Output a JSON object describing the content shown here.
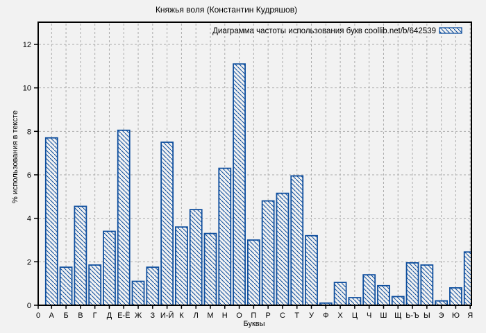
{
  "chart_data": {
    "type": "bar",
    "title": "Княжья воля (Константин Кудряшов)",
    "legend_label": "Диаграмма частоты использования букв coollib.net/b/642539",
    "legend_position": "top-right-inside",
    "xlabel": "Буквы",
    "ylabel": "% использования в тексте",
    "x_origin_label": "0",
    "categories": [
      "А",
      "Б",
      "В",
      "Г",
      "Д",
      "Е-Ё",
      "Ж",
      "З",
      "И-Й",
      "К",
      "Л",
      "М",
      "Н",
      "О",
      "П",
      "Р",
      "С",
      "Т",
      "У",
      "Ф",
      "Х",
      "Ц",
      "Ч",
      "Ш",
      "Щ",
      "Ь-Ъ",
      "Ы",
      "Э",
      "Ю",
      "Я"
    ],
    "values": [
      7.7,
      1.75,
      4.55,
      1.85,
      3.4,
      8.05,
      1.1,
      1.75,
      7.5,
      3.6,
      4.4,
      3.3,
      6.3,
      11.1,
      3.0,
      4.8,
      5.15,
      5.95,
      3.2,
      0.1,
      1.05,
      0.35,
      1.4,
      0.9,
      0.4,
      1.95,
      1.85,
      0.2,
      0.8,
      2.45
    ],
    "y_ticks": [
      0,
      2,
      4,
      6,
      8,
      10,
      12
    ],
    "ylim": [
      0,
      13
    ],
    "grid": "dashed",
    "bar_style": "diagonal-hatch",
    "colors": {
      "bar": "#0f4f9e",
      "grid": "#ababab",
      "background": "#f2f2f2",
      "axis": "#000000"
    }
  }
}
